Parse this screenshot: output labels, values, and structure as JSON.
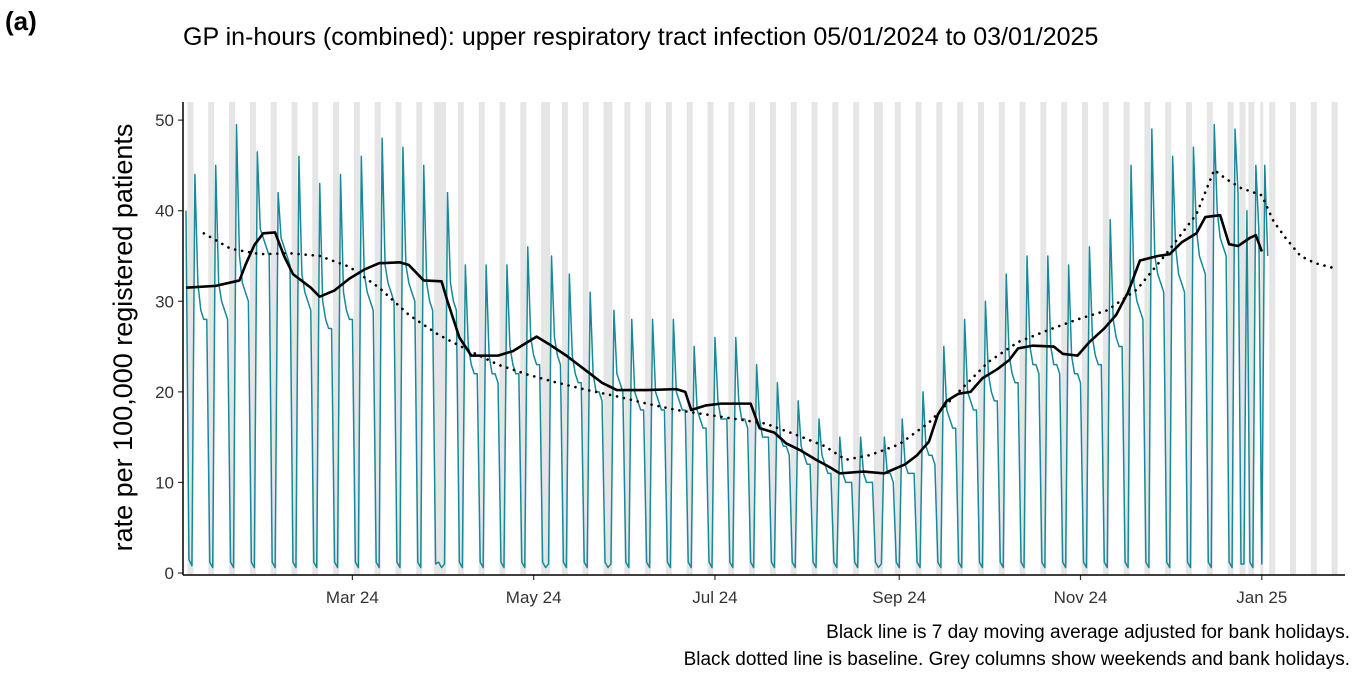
{
  "panel_label": "(a)",
  "chart_data": {
    "type": "line",
    "title": "GP in-hours (combined): upper respiratory tract infection 05/01/2024 to 03/01/2025",
    "y_label": "rate per 100,000 registered patients",
    "notes": [
      "Black line is 7 day moving average adjusted for bank holidays.",
      "Black dotted line is baseline. Grey columns show weekends and bank holidays."
    ],
    "xlim": [
      -1,
      390
    ],
    "xticks": [
      {
        "value": 56,
        "label": "Mar 24"
      },
      {
        "value": 117,
        "label": "May 24"
      },
      {
        "value": 178,
        "label": "Jul 24"
      },
      {
        "value": 240,
        "label": "Sep 24"
      },
      {
        "value": 301,
        "label": "Nov 24"
      },
      {
        "value": 362,
        "label": "Jan 25"
      }
    ],
    "ylim": [
      0,
      52
    ],
    "yticks": [
      0,
      10,
      20,
      30,
      40,
      50
    ],
    "grid": false,
    "shading_color": "#e5e5e5",
    "shaded_days": [
      1,
      2,
      8,
      9,
      15,
      16,
      22,
      23,
      29,
      30,
      36,
      37,
      43,
      44,
      50,
      51,
      57,
      58,
      64,
      65,
      71,
      72,
      78,
      79,
      85,
      86,
      92,
      93,
      99,
      100,
      106,
      107,
      113,
      114,
      120,
      121,
      127,
      128,
      134,
      135,
      141,
      142,
      148,
      149,
      155,
      156,
      162,
      163,
      169,
      170,
      176,
      177,
      183,
      184,
      190,
      191,
      197,
      198,
      204,
      205,
      211,
      212,
      218,
      219,
      225,
      226,
      232,
      233,
      239,
      240,
      246,
      247,
      253,
      254,
      260,
      261,
      267,
      268,
      274,
      275,
      281,
      282,
      288,
      289,
      295,
      296,
      302,
      303,
      309,
      310,
      316,
      317,
      323,
      324,
      330,
      331,
      337,
      338,
      344,
      345,
      351,
      352,
      358,
      359,
      365,
      366,
      372,
      373,
      379,
      380,
      386,
      387,
      84,
      87,
      122,
      143,
      234,
      355,
      356,
      362
    ],
    "series": [
      {
        "color": "#17899a",
        "linestyle": "solid",
        "width": 1.5,
        "x": [
          0,
          1,
          2,
          3,
          4,
          5,
          6,
          7,
          8,
          9,
          10,
          11,
          12,
          13,
          14,
          15,
          16,
          17,
          18,
          19,
          20,
          21,
          22,
          23,
          24,
          25,
          26,
          27,
          28,
          29,
          30,
          31,
          32,
          33,
          34,
          35,
          36,
          37,
          38,
          39,
          40,
          41,
          42,
          43,
          44,
          45,
          46,
          47,
          48,
          49,
          50,
          51,
          52,
          53,
          54,
          55,
          56,
          57,
          58,
          59,
          60,
          61,
          62,
          63,
          64,
          65,
          66,
          67,
          68,
          69,
          70,
          71,
          72,
          73,
          74,
          75,
          76,
          77,
          78,
          79,
          80,
          81,
          82,
          83,
          84,
          85,
          86,
          87,
          88,
          89,
          90,
          91,
          92,
          93,
          94,
          95,
          96,
          97,
          98,
          99,
          100,
          101,
          102,
          103,
          104,
          105,
          106,
          107,
          108,
          109,
          110,
          111,
          112,
          113,
          114,
          115,
          116,
          117,
          118,
          119,
          120,
          121,
          122,
          123,
          124,
          125,
          126,
          127,
          128,
          129,
          130,
          131,
          132,
          133,
          134,
          135,
          136,
          137,
          138,
          139,
          140,
          141,
          142,
          143,
          144,
          145,
          146,
          147,
          148,
          149,
          150,
          151,
          152,
          153,
          154,
          155,
          156,
          157,
          158,
          159,
          160,
          161,
          162,
          163,
          164,
          165,
          166,
          167,
          168,
          169,
          170,
          171,
          172,
          173,
          174,
          175,
          176,
          177,
          178,
          179,
          180,
          181,
          182,
          183,
          184,
          185,
          186,
          187,
          188,
          189,
          190,
          191,
          192,
          193,
          194,
          195,
          196,
          197,
          198,
          199,
          200,
          201,
          202,
          203,
          204,
          205,
          206,
          207,
          208,
          209,
          210,
          211,
          212,
          213,
          214,
          215,
          216,
          217,
          218,
          219,
          220,
          221,
          222,
          223,
          224,
          225,
          226,
          227,
          228,
          229,
          230,
          231,
          232,
          233,
          234,
          235,
          236,
          237,
          238,
          239,
          240,
          241,
          242,
          243,
          244,
          245,
          246,
          247,
          248,
          249,
          250,
          251,
          252,
          253,
          254,
          255,
          256,
          257,
          258,
          259,
          260,
          261,
          262,
          263,
          264,
          265,
          266,
          267,
          268,
          269,
          270,
          271,
          272,
          273,
          274,
          275,
          276,
          277,
          278,
          279,
          280,
          281,
          282,
          283,
          284,
          285,
          286,
          287,
          288,
          289,
          290,
          291,
          292,
          293,
          294,
          295,
          296,
          297,
          298,
          299,
          300,
          301,
          302,
          303,
          304,
          305,
          306,
          307,
          308,
          309,
          310,
          311,
          312,
          313,
          314,
          315,
          316,
          317,
          318,
          319,
          320,
          321,
          322,
          323,
          324,
          325,
          326,
          327,
          328,
          329,
          330,
          331,
          332,
          333,
          334,
          335,
          336,
          337,
          338,
          339,
          340,
          341,
          342,
          343,
          344,
          345,
          346,
          347,
          348,
          349,
          350,
          351,
          352,
          353,
          354,
          355,
          356,
          357,
          358,
          359,
          360,
          361,
          362,
          363,
          364
        ],
        "values": [
          40,
          1.5,
          0.8,
          44,
          32,
          29,
          28,
          28,
          1.2,
          0.6,
          45,
          32,
          30,
          29,
          28,
          1.2,
          0.6,
          49.5,
          35,
          32,
          31,
          30,
          1.2,
          0.6,
          46.5,
          38,
          37,
          36,
          35,
          1.2,
          0.6,
          42,
          37,
          36,
          35,
          34,
          1.2,
          0.6,
          46,
          33,
          31,
          30,
          29,
          1.2,
          0.6,
          43,
          30,
          28,
          27,
          27,
          1.2,
          0.6,
          44,
          31,
          29,
          28,
          28,
          1.2,
          0.6,
          46,
          33,
          31,
          30,
          29,
          1.2,
          0.6,
          48,
          34,
          32,
          31,
          30,
          1.2,
          0.6,
          47,
          34,
          32,
          31,
          30,
          1.2,
          0.6,
          45,
          32,
          30,
          29,
          1,
          1.2,
          0.6,
          1,
          42,
          32,
          30,
          29,
          1.2,
          0.6,
          34,
          25,
          23,
          22,
          22,
          1.2,
          0.6,
          34,
          24,
          22,
          22,
          21,
          1.2,
          0.6,
          34,
          25,
          23,
          22,
          22,
          1.2,
          0.6,
          36,
          26,
          24,
          23,
          23,
          1.2,
          0.6,
          1,
          35,
          26,
          24,
          23,
          1.2,
          0.6,
          33,
          24,
          22,
          21,
          21,
          1.2,
          0.6,
          31,
          22,
          20,
          20,
          19,
          1.2,
          0.6,
          1,
          29,
          22,
          21,
          20,
          1.2,
          0.6,
          28,
          20,
          19,
          18,
          18,
          1.2,
          0.6,
          28,
          20,
          19,
          18,
          18,
          1.2,
          0.6,
          28,
          20,
          19,
          18,
          18,
          1.2,
          0.6,
          25,
          18,
          17,
          16,
          16,
          1.2,
          0.6,
          26,
          19,
          17,
          17,
          17,
          1.2,
          0.6,
          26,
          19,
          17,
          17,
          16,
          1.2,
          0.6,
          23,
          17,
          15,
          15,
          15,
          1.2,
          0.6,
          21,
          15,
          14,
          14,
          13,
          1.2,
          0.6,
          19,
          14,
          13,
          12,
          12,
          1.2,
          0.6,
          17,
          13,
          12,
          11,
          11,
          1.2,
          0.6,
          15,
          11,
          10,
          10,
          10,
          1.2,
          0.6,
          15,
          11,
          10,
          10,
          10,
          1.2,
          0.6,
          1,
          15,
          11,
          11,
          10,
          1.2,
          0.6,
          17,
          12,
          11,
          11,
          11,
          1.2,
          0.6,
          20,
          14,
          13,
          13,
          12,
          1.2,
          0.6,
          25,
          18,
          17,
          16,
          16,
          1.2,
          0.6,
          28,
          20,
          19,
          18,
          18,
          1.2,
          0.6,
          30,
          22,
          20,
          19,
          19,
          1.2,
          0.6,
          33,
          24,
          22,
          21,
          21,
          1.2,
          0.6,
          35,
          25,
          23,
          23,
          22,
          1.2,
          0.6,
          35,
          25,
          23,
          23,
          22,
          1.2,
          0.6,
          34,
          24,
          22,
          22,
          21,
          1.2,
          0.6,
          36,
          26,
          24,
          23,
          23,
          1.2,
          0.6,
          39,
          28,
          26,
          25,
          25,
          1.2,
          0.6,
          45,
          32,
          30,
          29,
          28,
          1.2,
          0.6,
          49,
          35,
          33,
          32,
          31,
          1.2,
          0.6,
          46,
          36,
          33,
          32,
          31,
          1.2,
          0.6,
          47,
          38,
          35,
          34,
          33,
          1.2,
          0.6,
          49.5,
          40,
          37,
          36,
          35,
          1.2,
          0.6,
          49,
          42,
          1,
          1,
          40,
          1.2,
          0.6,
          45,
          38,
          1,
          45,
          35
        ]
      },
      {
        "color": "#000000",
        "linestyle": "solid",
        "width": 2.6,
        "x": [
          0,
          10,
          18,
          20,
          23,
          26,
          30,
          33,
          36,
          42,
          45,
          50,
          55,
          60,
          65,
          72,
          75,
          80,
          86,
          88,
          92,
          96,
          105,
          110,
          115,
          118,
          122,
          128,
          134,
          140,
          145,
          155,
          165,
          168,
          170,
          175,
          180,
          190,
          193,
          198,
          202,
          207,
          212,
          216,
          220,
          228,
          235,
          242,
          246,
          250,
          253,
          256,
          260,
          264,
          268,
          273,
          277,
          280,
          285,
          292,
          295,
          300,
          304,
          309,
          313,
          317,
          321,
          327,
          331,
          335,
          340,
          343,
          348,
          351,
          354,
          358,
          360,
          362
        ],
        "values": [
          31.5,
          31.7,
          32.3,
          34,
          36.2,
          37.5,
          37.6,
          35,
          33,
          31.5,
          30.5,
          31.2,
          32.5,
          33.5,
          34.2,
          34.3,
          34,
          32.3,
          32.2,
          30,
          26,
          24,
          24,
          24.5,
          25.5,
          26.1,
          25.3,
          24,
          22.5,
          21,
          20.2,
          20.2,
          20.3,
          20,
          18,
          18.5,
          18.7,
          18.7,
          16,
          15.5,
          14.3,
          13.5,
          12.5,
          11.8,
          11,
          11.2,
          11,
          12,
          13,
          14.5,
          17.5,
          19,
          19.8,
          20,
          21.5,
          22.5,
          23.5,
          24.8,
          25.1,
          25,
          24.2,
          24,
          25.5,
          27,
          28.5,
          31,
          34.5,
          35,
          35.2,
          36.5,
          37.5,
          39.3,
          39.5,
          36.3,
          36.1,
          37,
          37.3,
          35.5
        ]
      },
      {
        "color": "#000000",
        "linestyle": "dotted",
        "width": 2.6,
        "x": [
          6,
          15,
          25,
          35,
          45,
          55,
          65,
          75,
          85,
          95,
          105,
          115,
          125,
          135,
          145,
          155,
          165,
          175,
          185,
          195,
          205,
          215,
          222,
          230,
          240,
          250,
          260,
          270,
          280,
          290,
          300,
          310,
          320,
          330,
          340,
          346,
          350,
          355,
          362,
          366,
          370,
          375,
          380,
          387
        ],
        "values": [
          37.5,
          35.8,
          35.2,
          35.3,
          35,
          33.8,
          31.5,
          28.5,
          26.3,
          24.6,
          23,
          21.9,
          21,
          20.2,
          19.5,
          18.7,
          18,
          17.5,
          17,
          16.5,
          15.3,
          14,
          12.5,
          13,
          14.2,
          16.6,
          20,
          23.3,
          25.5,
          26.8,
          28,
          29,
          31.3,
          35.3,
          39.6,
          44.5,
          43.5,
          42.5,
          41.7,
          38.8,
          37,
          35,
          34.2,
          33.6
        ]
      }
    ]
  }
}
